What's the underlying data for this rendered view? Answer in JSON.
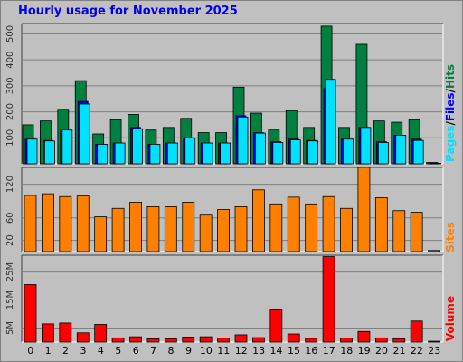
{
  "title": "Hourly usage for November 2025",
  "colors": {
    "hits": "#008040",
    "files": "#0000ff",
    "pages": "#00e0ff",
    "sites": "#ff8000",
    "volume": "#ff0000",
    "background": "#c0c0c0",
    "title": "#0000ee"
  },
  "side_labels": {
    "top": [
      {
        "text": "Pages",
        "color": "#00e0ff"
      },
      {
        "text": "/",
        "color": "#000000"
      },
      {
        "text": "Files",
        "color": "#0000ff"
      },
      {
        "text": "/",
        "color": "#000000"
      },
      {
        "text": "Hits",
        "color": "#008040"
      }
    ],
    "middle": {
      "text": "Sites",
      "color": "#ff8000"
    },
    "bottom": {
      "text": "Volume",
      "color": "#ff0000"
    }
  },
  "chart_data": [
    {
      "type": "bar",
      "panel": "hits-files-pages",
      "categories": [
        "0",
        "1",
        "2",
        "3",
        "4",
        "5",
        "6",
        "7",
        "8",
        "9",
        "10",
        "11",
        "12",
        "13",
        "14",
        "15",
        "16",
        "17",
        "18",
        "19",
        "20",
        "21",
        "22",
        "23"
      ],
      "ylim": [
        0,
        540
      ],
      "yticks": [
        100,
        200,
        300,
        400,
        500
      ],
      "ytick_labels": [
        "100",
        "200",
        "300",
        "400",
        "500"
      ],
      "series": [
        {
          "name": "Hits",
          "values": [
            150,
            165,
            210,
            320,
            115,
            170,
            190,
            130,
            140,
            175,
            120,
            120,
            295,
            195,
            130,
            205,
            140,
            530,
            140,
            460,
            165,
            160,
            170,
            5
          ]
        },
        {
          "name": "Files",
          "values": [
            95,
            90,
            125,
            240,
            75,
            80,
            140,
            75,
            80,
            100,
            80,
            80,
            185,
            120,
            85,
            95,
            90,
            290,
            95,
            140,
            85,
            110,
            95,
            3
          ]
        },
        {
          "name": "Pages",
          "values": [
            95,
            88,
            130,
            230,
            75,
            80,
            135,
            75,
            80,
            100,
            80,
            80,
            180,
            118,
            82,
            92,
            88,
            325,
            95,
            140,
            82,
            110,
            90,
            2
          ]
        }
      ]
    },
    {
      "type": "bar",
      "panel": "sites",
      "categories": [
        "0",
        "1",
        "2",
        "3",
        "4",
        "5",
        "6",
        "7",
        "8",
        "9",
        "10",
        "11",
        "12",
        "13",
        "14",
        "15",
        "16",
        "17",
        "18",
        "19",
        "20",
        "21",
        "22",
        "23"
      ],
      "ylim": [
        0,
        150
      ],
      "yticks": [
        20,
        60,
        120
      ],
      "ytick_labels": [
        "20",
        "60",
        "120"
      ],
      "series": [
        {
          "name": "Sites",
          "values": [
            100,
            103,
            98,
            99,
            62,
            77,
            88,
            80,
            80,
            88,
            65,
            75,
            80,
            110,
            85,
            97,
            85,
            98,
            77,
            150,
            96,
            73,
            70,
            2
          ]
        }
      ]
    },
    {
      "type": "bar",
      "panel": "volume",
      "categories": [
        "0",
        "1",
        "2",
        "3",
        "4",
        "5",
        "6",
        "7",
        "8",
        "9",
        "10",
        "11",
        "12",
        "13",
        "14",
        "15",
        "16",
        "17",
        "18",
        "19",
        "20",
        "21",
        "22",
        "23"
      ],
      "ylim": [
        0,
        31
      ],
      "yticks": [
        5,
        15,
        25
      ],
      "ytick_labels": [
        "5M",
        "15M",
        "25M"
      ],
      "series": [
        {
          "name": "Volume",
          "values": [
            20.5,
            6.5,
            6.8,
            3.3,
            6.3,
            1.5,
            1.9,
            1.2,
            1.2,
            1.8,
            1.9,
            1.4,
            2.6,
            1.6,
            11.8,
            2.9,
            1.3,
            30.5,
            1.4,
            3.8,
            1.5,
            1.2,
            7.5,
            0.3
          ]
        }
      ]
    }
  ]
}
